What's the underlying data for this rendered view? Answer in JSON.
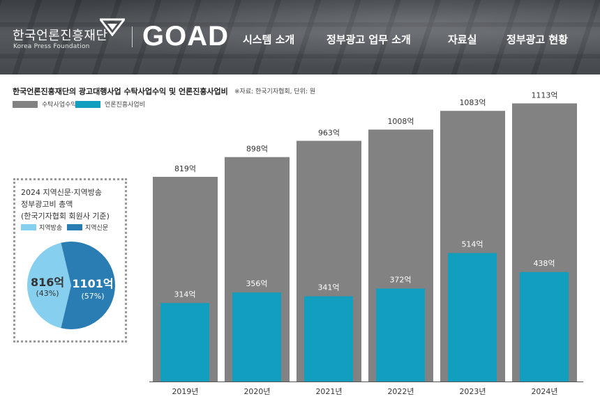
{
  "header": {
    "logo_korean": "한국언론진흥재단",
    "logo_english": "Korea Press Foundation",
    "brand": "GOAD",
    "nav": [
      {
        "label": "시스템 소개"
      },
      {
        "label": "정부광고 업무 소개"
      },
      {
        "label": "자료실"
      },
      {
        "label": "정부광고 현황"
      }
    ]
  },
  "chart_title": "한국언론진흥재단의 광고대행사업 수탁사업수익 및 언론진흥사업비",
  "source_note": "※자료: 한국기자협회, 단위: 원",
  "colors": {
    "consignment": "#828282",
    "promotion": "#129ebe",
    "regional_broadcast": "#87cfee",
    "regional_newspaper": "#2a7db3"
  },
  "chart_data": [
    {
      "type": "bar",
      "categories": [
        "2019년",
        "2020년",
        "2021년",
        "2022년",
        "2023년",
        "2024년"
      ],
      "series": [
        {
          "name": "수탁사업수익",
          "values": [
            819,
            898,
            963,
            1008,
            1083,
            1113
          ],
          "labels": [
            "819억",
            "898억",
            "963억",
            "1008억",
            "1083억",
            "1113억"
          ]
        },
        {
          "name": "언론진흥사업비",
          "values": [
            314,
            356,
            341,
            372,
            514,
            438
          ],
          "labels": [
            "314억",
            "356억",
            "341억",
            "372억",
            "514억",
            "438억"
          ]
        }
      ],
      "legend": "top-left",
      "grid": false
    },
    {
      "type": "pie",
      "title_lines": [
        "2024 지역신문·지역방송",
        "정부광고비 총액",
        "(한국기자협회 회원사 기준)"
      ],
      "labels": [
        "지역방송",
        "지역신문"
      ],
      "values": [
        816,
        1101
      ],
      "value_labels": [
        "816억",
        "1101억"
      ],
      "percent_labels": [
        "(43%)",
        "(57%)"
      ]
    }
  ]
}
